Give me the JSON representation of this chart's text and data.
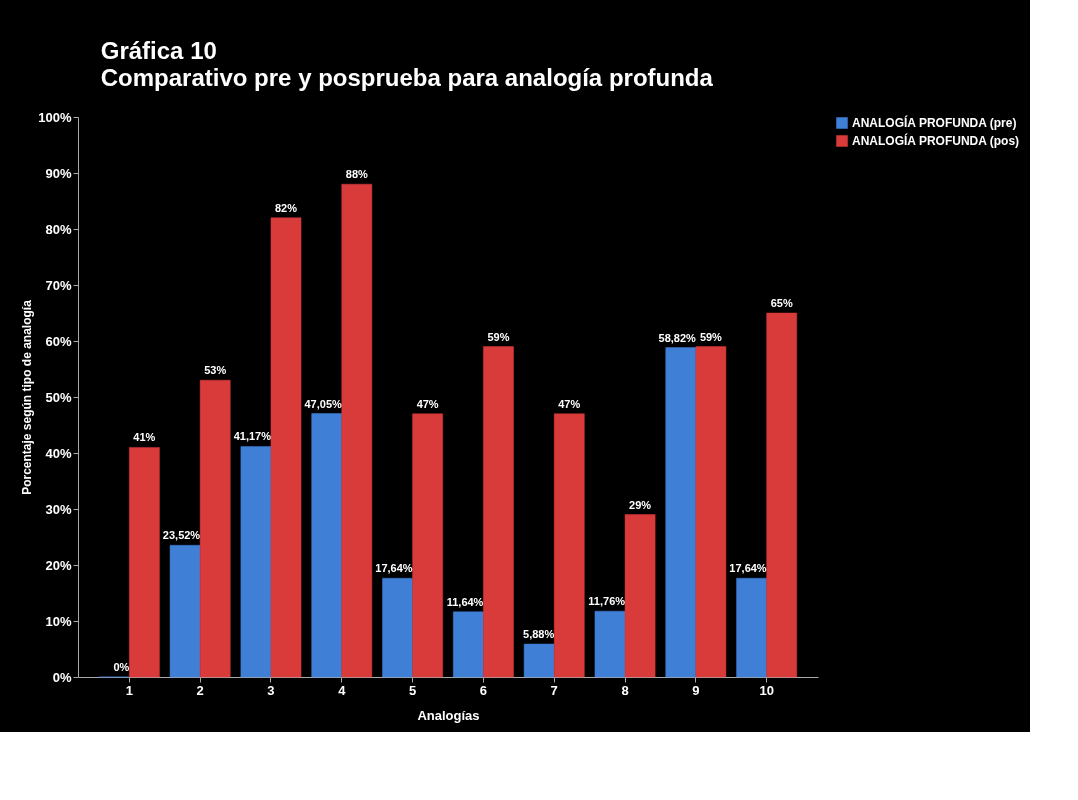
{
  "chart_data": {
    "type": "bar",
    "title": "Gráfica 10",
    "subtitle": "Comparativo pre y posprueba para analogía profunda",
    "xlabel": "Analogías",
    "ylabel": "Porcentaje según tipo de analogía",
    "categories": [
      "1",
      "2",
      "3",
      "4",
      "5",
      "6",
      "7",
      "8",
      "9",
      "10"
    ],
    "series": [
      {
        "name": "ANALOGÍA PROFUNDA (pre)",
        "color": "#3f7fd6",
        "values": [
          0,
          23.52,
          41.17,
          47.05,
          17.64,
          11.64,
          5.88,
          11.76,
          58.82,
          17.64
        ],
        "value_labels": [
          "0%",
          "23,52%",
          "41,17%",
          "47,05%",
          "17,64%",
          "11,64%",
          "5,88%",
          "11,76%",
          "58,82%",
          "17,64%"
        ]
      },
      {
        "name": "ANALOGÍA PROFUNDA (pos)",
        "color": "#d93a3a",
        "values": [
          41,
          53,
          82,
          88,
          47,
          59,
          47,
          29,
          59,
          65
        ],
        "value_labels": [
          "41%",
          "53%",
          "82%",
          "88%",
          "47%",
          "59%",
          "47%",
          "29%",
          "59%",
          "65%"
        ]
      }
    ],
    "ylim": [
      0,
      100
    ],
    "yticks": [
      {
        "value": 0,
        "label": "0%"
      },
      {
        "value": 10,
        "label": "10%"
      },
      {
        "value": 20,
        "label": "20%"
      },
      {
        "value": 30,
        "label": "30%"
      },
      {
        "value": 40,
        "label": "40%"
      },
      {
        "value": 50,
        "label": "50%"
      },
      {
        "value": 60,
        "label": "60%"
      },
      {
        "value": 70,
        "label": "70%"
      },
      {
        "value": 80,
        "label": "80%"
      },
      {
        "value": 90,
        "label": "90%"
      },
      {
        "value": 100,
        "label": "100%"
      }
    ],
    "grid": false,
    "legend": "right"
  }
}
